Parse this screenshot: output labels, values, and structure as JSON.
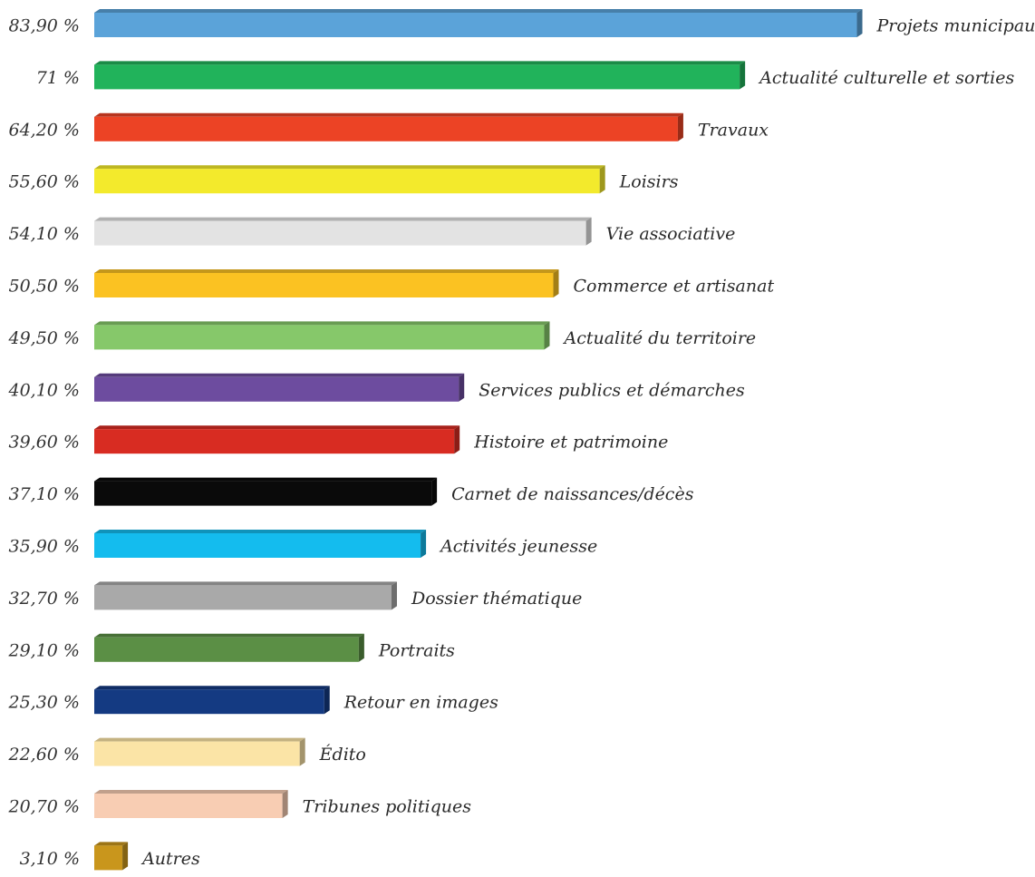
{
  "chart_data": {
    "type": "bar",
    "orientation": "horizontal",
    "title": "",
    "xlabel": "",
    "ylabel": "",
    "xlim": [
      0,
      100
    ],
    "grid": false,
    "bars": [
      {
        "label": "Projets municipaux",
        "value": 83.9,
        "display": "83,90 %",
        "color": "#5ba3d9"
      },
      {
        "label": "Actualité culturelle et sorties",
        "value": 71,
        "display": "71 %",
        "color": "#21b35b"
      },
      {
        "label": "Travaux",
        "value": 64.2,
        "display": "64,20 %",
        "color": "#ec4325"
      },
      {
        "label": "Loisirs",
        "value": 55.6,
        "display": "55,60 %",
        "color": "#f3ea2c"
      },
      {
        "label": "Vie associative",
        "value": 54.1,
        "display": "54,10 %",
        "color": "#e3e3e3"
      },
      {
        "label": "Commerce et artisanat",
        "value": 50.5,
        "display": "50,50 %",
        "color": "#fbc222"
      },
      {
        "label": "Actualité du territoire",
        "value": 49.5,
        "display": "49,50 %",
        "color": "#86c86a"
      },
      {
        "label": "Services publics et démarches",
        "value": 40.1,
        "display": "40,10 %",
        "color": "#6d4c9f"
      },
      {
        "label": "Histoire et patrimoine",
        "value": 39.6,
        "display": "39,60 %",
        "color": "#d82c22"
      },
      {
        "label": "Carnet de naissances/décès",
        "value": 37.1,
        "display": "37,10 %",
        "color": "#0a0a0a"
      },
      {
        "label": "Activités jeunesse",
        "value": 35.9,
        "display": "35,90 %",
        "color": "#14bcee"
      },
      {
        "label": "Dossier thématique",
        "value": 32.7,
        "display": "32,70 %",
        "color": "#a9a9a9"
      },
      {
        "label": "Portraits",
        "value": 29.1,
        "display": "29,10 %",
        "color": "#5b8f45"
      },
      {
        "label": "Retour en images",
        "value": 25.3,
        "display": "25,30 %",
        "color": "#143a82"
      },
      {
        "label": "Édito",
        "value": 22.6,
        "display": "22,60 %",
        "color": "#fbe4a6"
      },
      {
        "label": "Tribunes politiques",
        "value": 20.7,
        "display": "20,70 %",
        "color": "#f8cdb3"
      },
      {
        "label": "Autres",
        "value": 3.1,
        "display": "3,10 %",
        "color": "#c9961c"
      }
    ]
  }
}
